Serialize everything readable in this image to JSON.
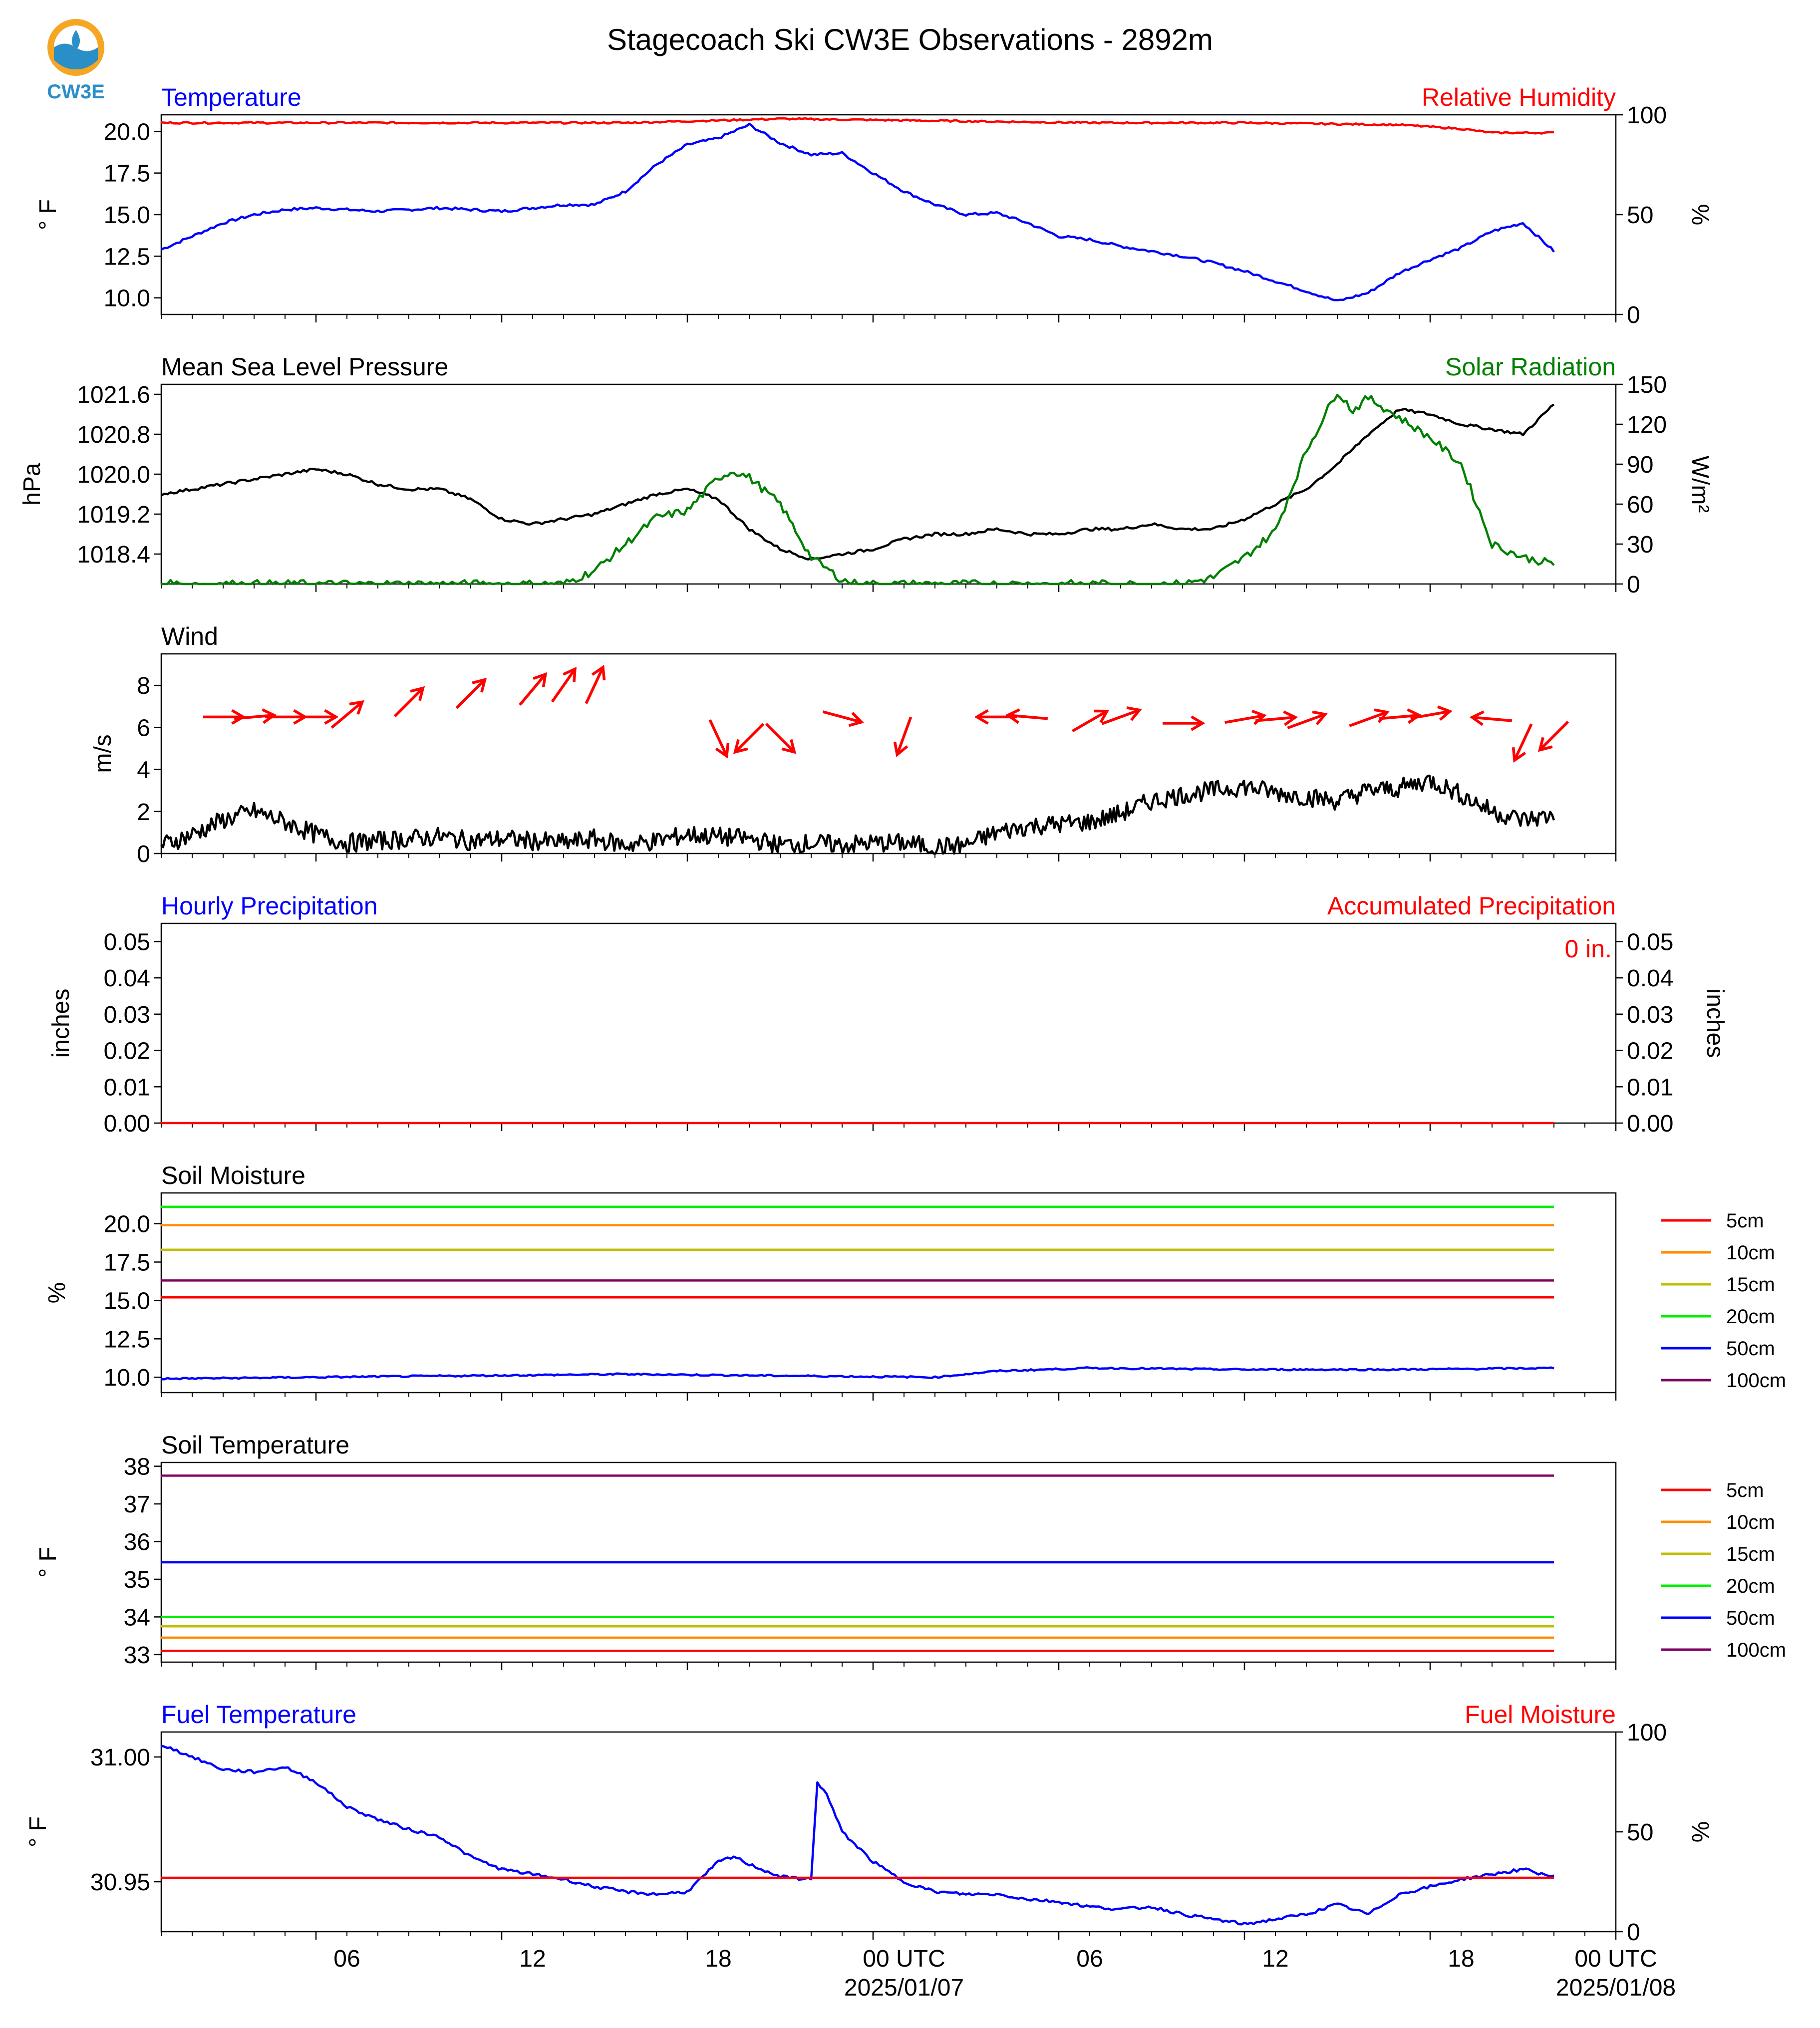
{
  "page": {
    "title": "Stagecoach Ski CW3E Observations - 2892m",
    "logo_text": "CW3E",
    "x_ticks": [
      "06",
      "12",
      "18",
      "00 UTC",
      "06",
      "12",
      "18",
      "00 UTC"
    ],
    "x_dates": [
      "2025/01/07",
      "2025/01/08"
    ],
    "x_range_hours": [
      -5,
      42
    ],
    "x_data_end_hours": 40
  },
  "chart_data": [
    {
      "type": "line",
      "title_left": "Temperature",
      "title_right": "Relative Humidity",
      "ylabel_left": "° F",
      "ylabel_right": "%",
      "ylim_left": [
        9.0,
        21.0
      ],
      "ylim_right": [
        0,
        100
      ],
      "yticks_left": [
        "10.0",
        "12.5",
        "15.0",
        "17.5",
        "20.0"
      ],
      "yticks_right": [
        "0",
        "50",
        "100"
      ],
      "series": [
        {
          "name": "Temperature",
          "axis": "left",
          "color": "#0000ff",
          "x": [
            -5,
            -4,
            -3,
            -2,
            -1,
            0,
            1,
            2,
            3,
            4,
            5,
            6,
            7,
            8,
            9,
            10,
            11,
            12,
            13,
            14,
            15,
            16,
            17,
            18,
            19,
            20,
            21,
            22,
            23,
            24,
            25,
            26,
            27,
            28,
            29,
            30,
            31,
            32,
            33,
            34,
            35,
            36,
            37,
            38,
            39,
            40
          ],
          "y": [
            12.9,
            13.7,
            14.5,
            15.0,
            15.3,
            15.4,
            15.3,
            15.2,
            15.3,
            15.4,
            15.3,
            15.2,
            15.4,
            15.6,
            15.6,
            16.4,
            18.0,
            19.2,
            19.6,
            20.4,
            19.3,
            18.6,
            18.7,
            17.5,
            16.4,
            15.6,
            15.0,
            15.1,
            14.5,
            13.7,
            13.5,
            13.1,
            12.8,
            12.5,
            12.1,
            11.6,
            11.0,
            10.4,
            9.8,
            10.3,
            11.5,
            12.3,
            13.0,
            14.0,
            14.5,
            12.8
          ]
        },
        {
          "name": "Relative Humidity",
          "axis": "right",
          "color": "#ff0000",
          "x": [
            -5,
            0,
            5,
            10,
            15,
            20,
            25,
            30,
            35,
            37,
            38,
            39,
            40
          ],
          "y": [
            96,
            96,
            96,
            96,
            98,
            97,
            96,
            96,
            95,
            93,
            91,
            91,
            91
          ]
        }
      ]
    },
    {
      "type": "line",
      "title_left": "Mean Sea Level Pressure",
      "title_right": "Solar Radiation",
      "ylabel_left": "hPa",
      "ylabel_right": "W/m²",
      "ylim_left": [
        1017.8,
        1021.8
      ],
      "ylim_right": [
        0,
        150
      ],
      "yticks_left": [
        "1018.4",
        "1019.2",
        "1020.0",
        "1020.8",
        "1021.6"
      ],
      "yticks_right": [
        "0",
        "30",
        "60",
        "90",
        "120",
        "150"
      ],
      "series": [
        {
          "name": "Mean Sea Level Pressure",
          "axis": "left",
          "color": "#000000",
          "x": [
            -5,
            -4,
            -3,
            -2,
            -1,
            0,
            1,
            2,
            3,
            4,
            5,
            6,
            7,
            8,
            9,
            10,
            11,
            12,
            13,
            14,
            15,
            16,
            17,
            18,
            19,
            20,
            21,
            22,
            23,
            24,
            25,
            26,
            27,
            28,
            29,
            30,
            31,
            32,
            33,
            34,
            35,
            36,
            37,
            38,
            39,
            40
          ],
          "y": [
            1019.6,
            1019.7,
            1019.8,
            1019.9,
            1020.0,
            1020.1,
            1020.0,
            1019.8,
            1019.7,
            1019.7,
            1019.5,
            1019.1,
            1019.0,
            1019.1,
            1019.2,
            1019.4,
            1019.6,
            1019.7,
            1019.5,
            1018.9,
            1018.5,
            1018.3,
            1018.4,
            1018.5,
            1018.7,
            1018.8,
            1018.8,
            1018.9,
            1018.8,
            1018.8,
            1018.9,
            1018.9,
            1019.0,
            1018.9,
            1018.9,
            1019.1,
            1019.4,
            1019.7,
            1020.2,
            1020.8,
            1021.3,
            1021.2,
            1021.0,
            1020.9,
            1020.8,
            1021.4
          ]
        },
        {
          "name": "Solar Radiation",
          "axis": "right",
          "color": "#008000",
          "x": [
            -5,
            8,
            9,
            10,
            11,
            12,
            13,
            13.5,
            14,
            14.5,
            15,
            16,
            17,
            17.5,
            18,
            28,
            29,
            30,
            31,
            32,
            33,
            33.5,
            34,
            35,
            36,
            37,
            38,
            39,
            40
          ],
          "y": [
            0,
            0,
            10,
            30,
            50,
            55,
            80,
            85,
            80,
            70,
            60,
            20,
            3,
            0,
            0,
            0,
            5,
            20,
            40,
            100,
            145,
            130,
            140,
            125,
            110,
            90,
            30,
            20,
            15
          ]
        }
      ]
    },
    {
      "type": "line",
      "title_left": "Wind",
      "ylabel_left": "m/s",
      "ylim_left": [
        0,
        9.5
      ],
      "yticks_left": [
        "0",
        "2",
        "4",
        "6",
        "8"
      ],
      "series": [
        {
          "name": "Wind",
          "axis": "left",
          "color": "#000000",
          "x": [
            -5,
            -4,
            -3,
            -2,
            -1,
            0,
            1,
            2,
            3,
            4,
            5,
            6,
            7,
            8,
            9,
            10,
            11,
            12,
            13,
            14,
            15,
            16,
            17,
            18,
            19,
            20,
            21,
            22,
            23,
            24,
            25,
            26,
            27,
            28,
            29,
            30,
            31,
            32,
            33,
            34,
            35,
            36,
            37,
            38,
            39,
            40
          ],
          "y": [
            0.4,
            0.9,
            1.6,
            2.0,
            1.5,
            0.9,
            0.5,
            0.6,
            0.7,
            0.8,
            0.6,
            0.7,
            0.6,
            0.5,
            0.7,
            0.4,
            0.6,
            0.9,
            0.8,
            0.7,
            0.4,
            0.5,
            0.4,
            0.5,
            0.5,
            0.3,
            0.4,
            1.0,
            1.3,
            1.4,
            1.5,
            1.9,
            2.5,
            2.8,
            3.0,
            3.2,
            2.9,
            2.7,
            2.5,
            3.0,
            3.1,
            3.5,
            2.8,
            2.0,
            1.6,
            1.8
          ]
        },
        {
          "name": "wind_barbs_x",
          "axis": "left",
          "color": "#ff0000",
          "x": [
            -3,
            -2,
            -1,
            0,
            1,
            3,
            5,
            7,
            8,
            9,
            13,
            14,
            15,
            17,
            19,
            22,
            23,
            25,
            26,
            28,
            30,
            31,
            32,
            34,
            35,
            36,
            38,
            39,
            40
          ],
          "y": [
            6.5,
            6.5,
            6.5,
            6.5,
            6.6,
            7.2,
            7.6,
            7.8,
            8.0,
            8.0,
            5.5,
            5.5,
            5.5,
            6.5,
            5.6,
            6.5,
            6.5,
            6.3,
            6.5,
            6.2,
            6.4,
            6.4,
            6.3,
            6.4,
            6.5,
            6.6,
            6.4,
            5.3,
            5.6
          ]
        },
        {
          "name": "wind_barbs_direction_deg",
          "axis": "left",
          "color": "#ff0000",
          "x": [
            -3,
            -2,
            -1,
            0,
            1,
            3,
            5,
            7,
            8,
            9,
            13,
            14,
            15,
            17,
            19,
            22,
            23,
            25,
            26,
            28,
            30,
            31,
            32,
            34,
            35,
            36,
            38,
            39,
            40
          ],
          "y": [
            270,
            265,
            270,
            270,
            230,
            225,
            225,
            220,
            215,
            205,
            335,
            45,
            315,
            285,
            20,
            90,
            95,
            240,
            250,
            270,
            260,
            265,
            250,
            250,
            265,
            260,
            95,
            25,
            45
          ]
        }
      ]
    },
    {
      "type": "line",
      "title_left": "Hourly Precipitation",
      "title_right": "Accumulated Precipitation",
      "annotation": "0 in.",
      "ylabel_left": "inches",
      "ylabel_right": "inches",
      "ylim_left": [
        0,
        0.055
      ],
      "ylim_right": [
        0,
        0.055
      ],
      "yticks_left": [
        "0.00",
        "0.01",
        "0.02",
        "0.03",
        "0.04",
        "0.05"
      ],
      "yticks_right": [
        "0.00",
        "0.01",
        "0.02",
        "0.03",
        "0.04",
        "0.05"
      ],
      "series": [
        {
          "name": "Accumulated Precipitation",
          "axis": "left",
          "color": "#ff0000",
          "x": [
            -5,
            40
          ],
          "y": [
            0,
            0
          ]
        }
      ]
    },
    {
      "type": "line",
      "title_left": "Soil Moisture",
      "ylabel_left": "%",
      "ylim_left": [
        9.0,
        22.0
      ],
      "yticks_left": [
        "10.0",
        "12.5",
        "15.0",
        "17.5",
        "20.0"
      ],
      "legend": [
        "5cm",
        "10cm",
        "15cm",
        "20cm",
        "50cm",
        "100cm"
      ],
      "legend_position": "right",
      "series": [
        {
          "name": "5cm",
          "axis": "left",
          "color": "#ff0000",
          "x": [
            -5,
            40
          ],
          "y": [
            15.2,
            15.2
          ]
        },
        {
          "name": "10cm",
          "axis": "left",
          "color": "#ff8c00",
          "x": [
            -5,
            40
          ],
          "y": [
            19.9,
            19.9
          ]
        },
        {
          "name": "15cm",
          "axis": "left",
          "color": "#bfbf00",
          "x": [
            -5,
            40
          ],
          "y": [
            18.3,
            18.3
          ]
        },
        {
          "name": "20cm",
          "axis": "left",
          "color": "#00ee00",
          "x": [
            -5,
            40
          ],
          "y": [
            21.1,
            21.1
          ]
        },
        {
          "name": "50cm",
          "axis": "left",
          "color": "#0000ff",
          "x": [
            -5,
            0,
            5,
            10,
            15,
            20,
            22,
            25,
            30,
            35,
            40
          ],
          "y": [
            9.9,
            10.0,
            10.1,
            10.2,
            10.1,
            10.0,
            10.4,
            10.6,
            10.5,
            10.5,
            10.6
          ]
        },
        {
          "name": "100cm",
          "axis": "left",
          "color": "#800060",
          "x": [
            -5,
            40
          ],
          "y": [
            16.3,
            16.3
          ]
        }
      ]
    },
    {
      "type": "line",
      "title_left": "Soil Temperature",
      "ylabel_left": "° F",
      "ylim_left": [
        32.8,
        38.1
      ],
      "yticks_left": [
        "33",
        "34",
        "35",
        "36",
        "37",
        "38"
      ],
      "legend": [
        "5cm",
        "10cm",
        "15cm",
        "20cm",
        "50cm",
        "100cm"
      ],
      "legend_position": "right",
      "series": [
        {
          "name": "5cm",
          "axis": "left",
          "color": "#ff0000",
          "x": [
            -5,
            40
          ],
          "y": [
            33.1,
            33.1
          ]
        },
        {
          "name": "10cm",
          "axis": "left",
          "color": "#ff8c00",
          "x": [
            -5,
            40
          ],
          "y": [
            33.45,
            33.45
          ]
        },
        {
          "name": "15cm",
          "axis": "left",
          "color": "#bfbf00",
          "x": [
            -5,
            40
          ],
          "y": [
            33.75,
            33.75
          ]
        },
        {
          "name": "20cm",
          "axis": "left",
          "color": "#00ee00",
          "x": [
            -5,
            40
          ],
          "y": [
            34.0,
            34.0
          ]
        },
        {
          "name": "50cm",
          "axis": "left",
          "color": "#0000ff",
          "x": [
            -5,
            40
          ],
          "y": [
            35.45,
            35.45
          ]
        },
        {
          "name": "100cm",
          "axis": "left",
          "color": "#800060",
          "x": [
            -5,
            40
          ],
          "y": [
            37.75,
            37.75
          ]
        }
      ]
    },
    {
      "type": "line",
      "title_left": "Fuel Temperature",
      "title_right": "Fuel Moisture",
      "ylabel_left": "° F",
      "ylabel_right": "%",
      "ylim_left": [
        30.93,
        31.01
      ],
      "ylim_right": [
        0,
        100
      ],
      "yticks_left": [
        "30.95",
        "31.00"
      ],
      "yticks_right": [
        "0",
        "50",
        "100"
      ],
      "series": [
        {
          "name": "Fuel Temperature",
          "axis": "left",
          "color": "#0000ff",
          "x": [
            -5,
            -4,
            -3,
            -2,
            -1,
            0,
            1,
            2,
            3,
            4,
            5,
            6,
            7,
            8,
            9,
            10,
            11,
            12,
            13,
            13.5,
            14,
            15,
            16,
            16.2,
            16.5,
            17,
            18,
            19,
            20,
            21,
            22,
            23,
            24,
            25,
            26,
            27,
            28,
            29,
            30,
            31,
            32,
            33,
            34,
            35,
            36,
            37,
            38,
            39,
            40
          ],
          "y": [
            31.005,
            31.0,
            30.995,
            30.994,
            30.996,
            30.99,
            30.98,
            30.975,
            30.971,
            30.968,
            30.96,
            30.955,
            30.953,
            30.951,
            30.948,
            30.946,
            30.945,
            30.946,
            30.958,
            30.96,
            30.957,
            30.952,
            30.951,
            30.99,
            30.985,
            30.97,
            30.958,
            30.95,
            30.946,
            30.945,
            30.945,
            30.943,
            30.942,
            30.94,
            30.939,
            30.94,
            30.937,
            30.935,
            30.933,
            30.935,
            30.937,
            30.941,
            30.937,
            30.945,
            30.948,
            30.951,
            30.953,
            30.955,
            30.952
          ]
        },
        {
          "name": "Fuel Moisture",
          "axis": "right",
          "color": "#ff0000",
          "x": [
            -5,
            40
          ],
          "y": [
            27,
            27
          ]
        }
      ]
    }
  ]
}
